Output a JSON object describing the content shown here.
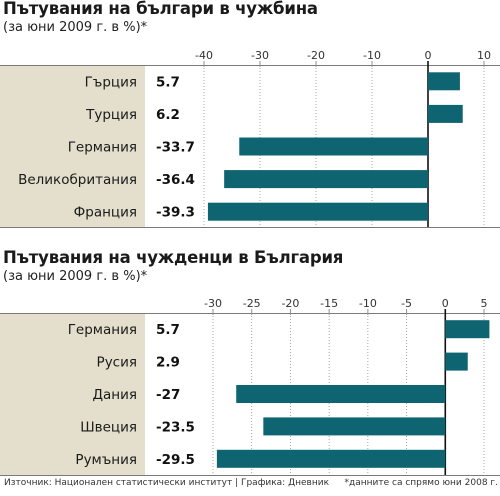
{
  "chart_data": [
    {
      "type": "bar",
      "orientation": "horizontal",
      "title": "Пътувания на българи в чужбина",
      "subtitle": "(за юни 2009 г. в %)*",
      "categories": [
        "Гърция",
        "Турция",
        "Германия",
        "Великобритания",
        "Франция"
      ],
      "values": [
        5.7,
        6.2,
        -33.7,
        -36.4,
        -39.3
      ],
      "value_labels": [
        "5.7",
        "6.2",
        "-33.7",
        "-36.4",
        "-39.3"
      ],
      "xlim": [
        -40,
        10
      ],
      "ticks": [
        -40,
        -30,
        -20,
        -10,
        0,
        10
      ],
      "tick_labels": [
        "-40",
        "-30",
        "-20",
        "-10",
        "0",
        "10"
      ],
      "grid": true
    },
    {
      "type": "bar",
      "orientation": "horizontal",
      "title": "Пътувания на чужденци в България",
      "subtitle": "(за юни 2009 г. в %)*",
      "categories": [
        "Германия",
        "Русия",
        "Дания",
        "Швеция",
        "Румъния"
      ],
      "values": [
        5.7,
        2.9,
        -27,
        -23.5,
        -29.5
      ],
      "value_labels": [
        "5.7",
        "2.9",
        "-27",
        "-23.5",
        "-29.5"
      ],
      "xlim": [
        -30,
        5
      ],
      "ticks": [
        -30,
        -25,
        -20,
        -15,
        -10,
        -5,
        0,
        5
      ],
      "tick_labels": [
        "-30",
        "-25",
        "-20",
        "-15",
        "-10",
        "-5",
        "0",
        "5"
      ],
      "grid": true
    }
  ],
  "colors": {
    "bar": "#0e6470",
    "label_band": "#e3dfcc",
    "value_band": "#ffffff",
    "plot_bg": "#ffffff",
    "grid": "#8f8f8f",
    "zero_line": "#111111"
  },
  "footer": {
    "source": "Източник: Национален статистически институт | Графика: Дневник",
    "note": "*данните са спрямо юни 2008 г."
  }
}
